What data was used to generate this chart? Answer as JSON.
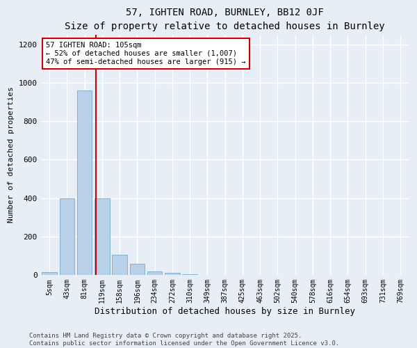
{
  "title": "57, IGHTEN ROAD, BURNLEY, BB12 0JF",
  "subtitle": "Size of property relative to detached houses in Burnley",
  "xlabel": "Distribution of detached houses by size in Burnley",
  "ylabel": "Number of detached properties",
  "categories": [
    "5sqm",
    "43sqm",
    "81sqm",
    "119sqm",
    "158sqm",
    "196sqm",
    "234sqm",
    "272sqm",
    "310sqm",
    "349sqm",
    "387sqm",
    "425sqm",
    "463sqm",
    "502sqm",
    "540sqm",
    "578sqm",
    "616sqm",
    "654sqm",
    "693sqm",
    "731sqm",
    "769sqm"
  ],
  "values": [
    14,
    400,
    960,
    400,
    105,
    60,
    20,
    10,
    5,
    0,
    0,
    0,
    0,
    0,
    0,
    0,
    0,
    0,
    0,
    0,
    0
  ],
  "bar_color": "#b8d0e8",
  "bar_edge_color": "#7aaac8",
  "vline_color": "#cc0000",
  "vline_x_index": 2.63,
  "annotation_text": "57 IGHTEN ROAD: 105sqm\n← 52% of detached houses are smaller (1,007)\n47% of semi-detached houses are larger (915) →",
  "annotation_box_facecolor": "#ffffff",
  "annotation_box_edgecolor": "#cc0000",
  "ylim": [
    0,
    1250
  ],
  "yticks": [
    0,
    200,
    400,
    600,
    800,
    1000,
    1200
  ],
  "footer_text": "Contains HM Land Registry data © Crown copyright and database right 2025.\nContains public sector information licensed under the Open Government Licence v3.0.",
  "bg_color": "#e8eef5",
  "plot_bg_color": "#e8eef5",
  "grid_color": "#ffffff",
  "title_fontsize": 10,
  "tick_fontsize": 7,
  "ylabel_fontsize": 8,
  "xlabel_fontsize": 9,
  "footer_fontsize": 6.5,
  "annotation_fontsize": 7.5
}
